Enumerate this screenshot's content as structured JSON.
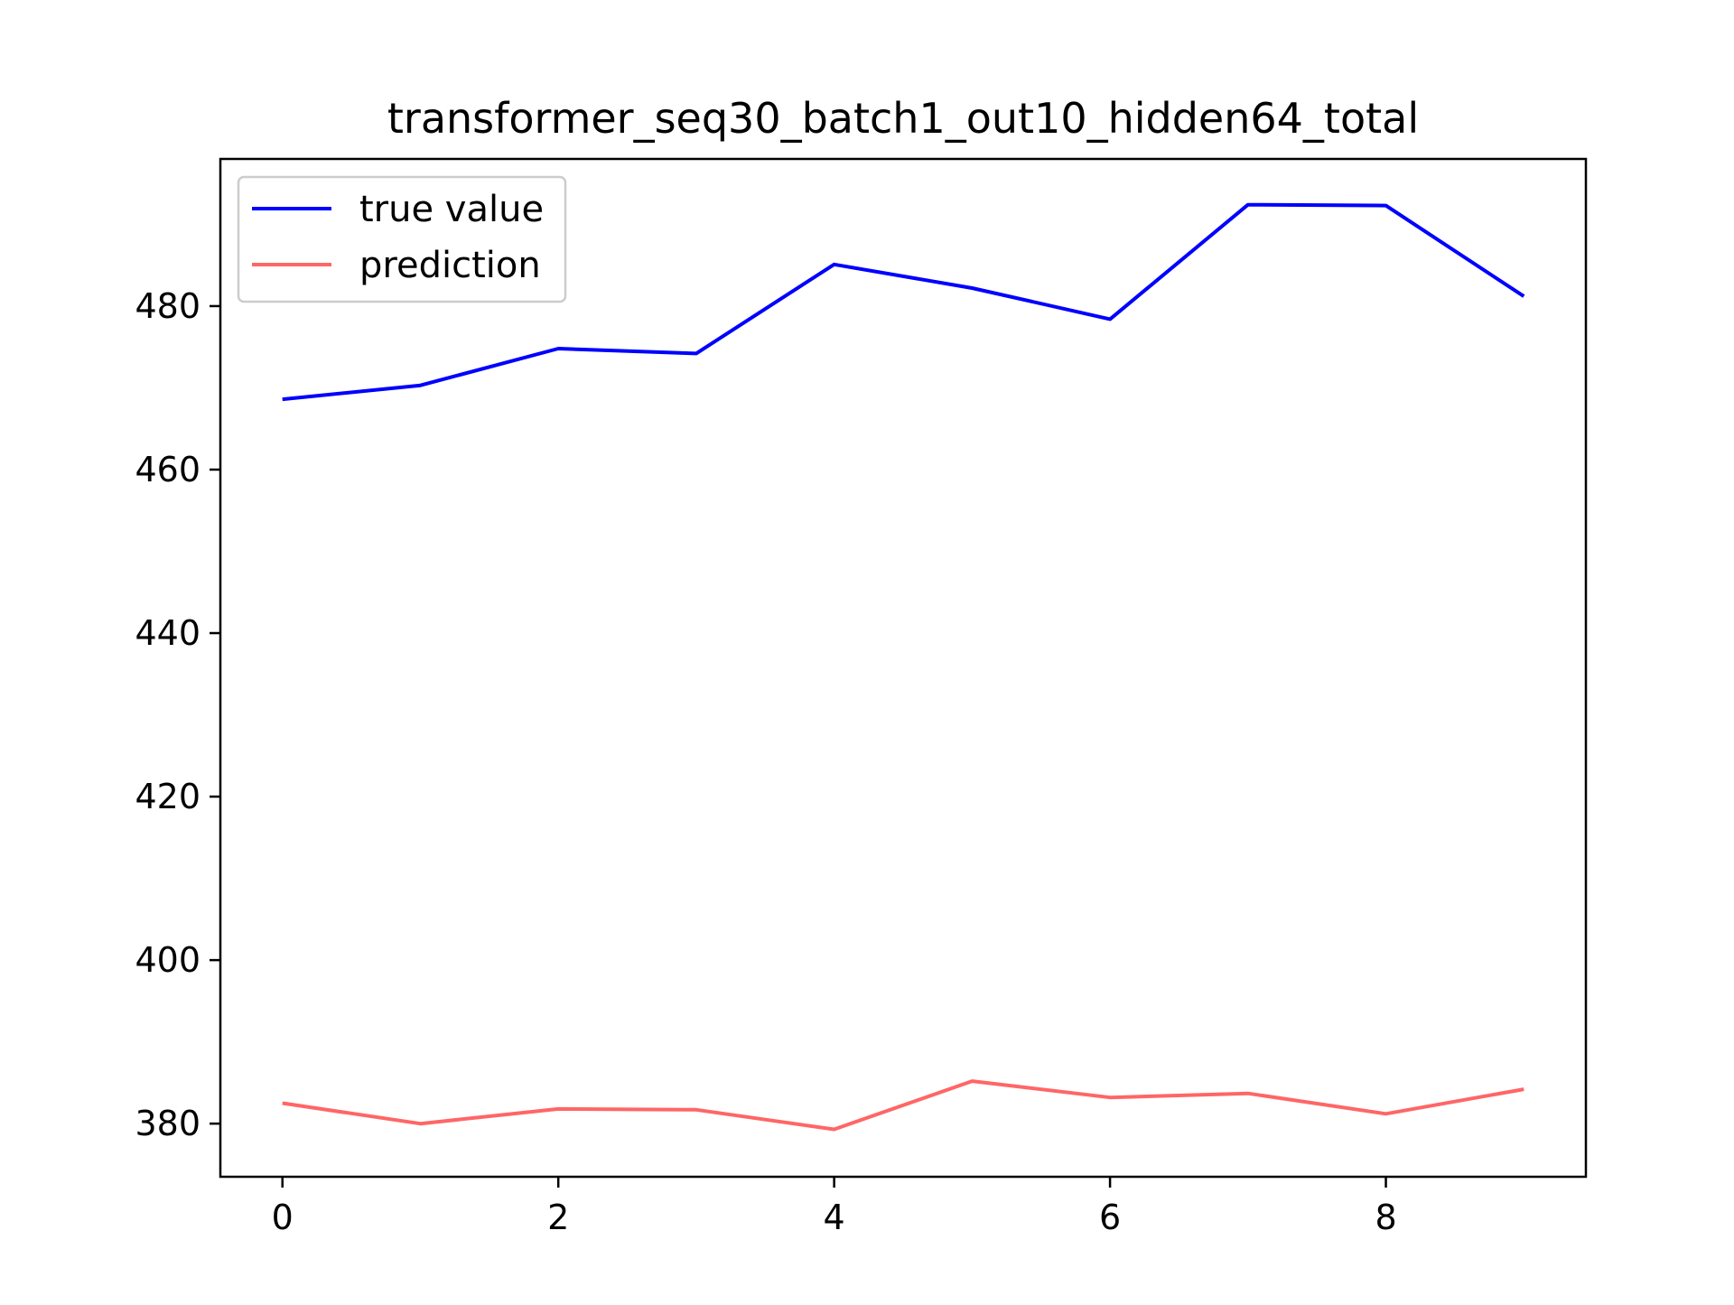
{
  "chart_data": {
    "type": "line",
    "title": "transformer_seq30_batch1_out10_hidden64_total",
    "xlabel": "",
    "ylabel": "",
    "x": [
      0,
      1,
      2,
      3,
      4,
      5,
      6,
      7,
      8,
      9
    ],
    "xlim": [
      -0.45,
      9.45
    ],
    "ylim": [
      373.5,
      498.0
    ],
    "xticks": [
      0,
      2,
      4,
      6,
      8
    ],
    "yticks": [
      380,
      400,
      420,
      440,
      460,
      480
    ],
    "grid": false,
    "legend": {
      "position": "top-left"
    },
    "series": [
      {
        "name": "true value",
        "color": "#0000ff",
        "values": [
          468.6,
          470.3,
          474.8,
          474.2,
          485.1,
          482.2,
          478.4,
          492.4,
          492.3,
          481.2
        ]
      },
      {
        "name": "prediction",
        "color": "#ff6666",
        "values": [
          382.5,
          380.0,
          381.8,
          381.7,
          379.3,
          385.2,
          383.2,
          383.7,
          381.2,
          384.2
        ]
      }
    ]
  }
}
